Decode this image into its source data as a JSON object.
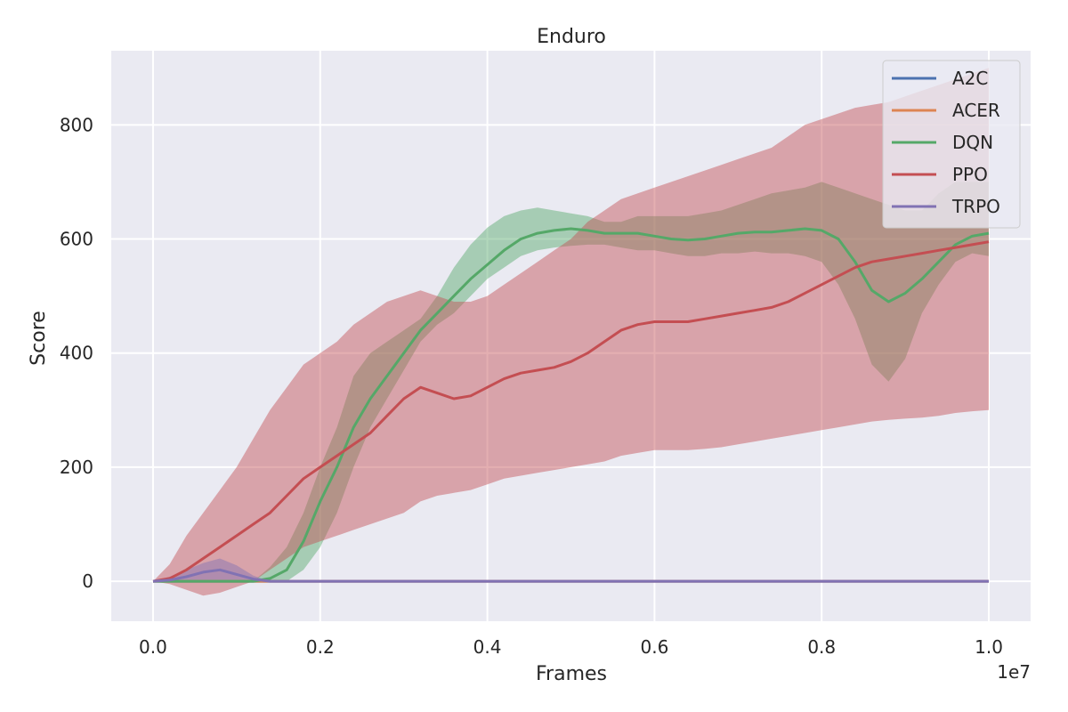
{
  "chart_data": {
    "type": "line",
    "title": "Enduro",
    "xlabel": "Frames",
    "ylabel": "Score",
    "x_offset_label": "1e7",
    "xlim": [
      -0.05,
      1.05
    ],
    "ylim": [
      -70,
      930
    ],
    "x_ticks": [
      0.0,
      0.2,
      0.4,
      0.6,
      0.8,
      1.0
    ],
    "x_tick_labels": [
      "0.0",
      "0.2",
      "0.4",
      "0.6",
      "0.8",
      "1.0"
    ],
    "y_ticks": [
      0,
      200,
      400,
      600,
      800
    ],
    "y_tick_labels": [
      "0",
      "200",
      "400",
      "600",
      "800"
    ],
    "grid": true,
    "legend_position": "top-right",
    "x": [
      0.0,
      0.02,
      0.04,
      0.06,
      0.08,
      0.1,
      0.12,
      0.14,
      0.16,
      0.18,
      0.2,
      0.22,
      0.24,
      0.26,
      0.28,
      0.3,
      0.32,
      0.34,
      0.36,
      0.38,
      0.4,
      0.42,
      0.44,
      0.46,
      0.48,
      0.5,
      0.52,
      0.54,
      0.56,
      0.58,
      0.6,
      0.62,
      0.64,
      0.66,
      0.68,
      0.7,
      0.72,
      0.74,
      0.76,
      0.78,
      0.8,
      0.82,
      0.84,
      0.86,
      0.88,
      0.9,
      0.92,
      0.94,
      0.96,
      0.98,
      1.0
    ],
    "series": [
      {
        "name": "A2C",
        "color": "#4c72b0",
        "values": [
          0,
          0,
          0,
          0,
          0,
          0,
          0,
          0,
          0,
          0,
          0,
          0,
          0,
          0,
          0,
          0,
          0,
          0,
          0,
          0,
          0,
          0,
          0,
          0,
          0,
          0,
          0,
          0,
          0,
          0,
          0,
          0,
          0,
          0,
          0,
          0,
          0,
          0,
          0,
          0,
          0,
          0,
          0,
          0,
          0,
          0,
          0,
          0,
          0,
          0,
          0
        ]
      },
      {
        "name": "ACER",
        "color": "#dd8452",
        "values": [
          0,
          0,
          0,
          0,
          0,
          0,
          0,
          0,
          0,
          0,
          0,
          0,
          0,
          0,
          0,
          0,
          0,
          0,
          0,
          0,
          0,
          0,
          0,
          0,
          0,
          0,
          0,
          0,
          0,
          0,
          0,
          0,
          0,
          0,
          0,
          0,
          0,
          0,
          0,
          0,
          0,
          0,
          0,
          0,
          0,
          0,
          0,
          0,
          0,
          0,
          0
        ]
      },
      {
        "name": "DQN",
        "color": "#55a868",
        "values": [
          0,
          0,
          0,
          0,
          0,
          0,
          0,
          5,
          20,
          70,
          140,
          200,
          270,
          320,
          360,
          400,
          440,
          470,
          500,
          530,
          555,
          580,
          600,
          610,
          615,
          618,
          615,
          610,
          610,
          610,
          605,
          600,
          598,
          600,
          605,
          610,
          612,
          612,
          615,
          618,
          615,
          600,
          560,
          510,
          490,
          505,
          530,
          560,
          590,
          605,
          610
        ],
        "upper": [
          0,
          0,
          0,
          0,
          0,
          0,
          0,
          25,
          60,
          120,
          200,
          270,
          360,
          400,
          420,
          440,
          460,
          500,
          550,
          590,
          620,
          640,
          650,
          655,
          650,
          645,
          640,
          630,
          630,
          640,
          640,
          640,
          640,
          645,
          650,
          660,
          670,
          680,
          685,
          690,
          700,
          690,
          680,
          670,
          660,
          650,
          650,
          680,
          700,
          700,
          700
        ],
        "lower": [
          0,
          0,
          0,
          0,
          0,
          0,
          0,
          0,
          0,
          20,
          60,
          120,
          200,
          270,
          320,
          370,
          420,
          450,
          470,
          500,
          530,
          550,
          570,
          580,
          585,
          588,
          590,
          590,
          585,
          580,
          580,
          575,
          570,
          570,
          575,
          575,
          578,
          575,
          575,
          570,
          560,
          520,
          460,
          380,
          350,
          390,
          470,
          520,
          560,
          575,
          570
        ]
      },
      {
        "name": "PPO",
        "color": "#c44e52",
        "values": [
          0,
          5,
          20,
          40,
          60,
          80,
          100,
          120,
          150,
          180,
          200,
          220,
          240,
          260,
          290,
          320,
          340,
          330,
          320,
          325,
          340,
          355,
          365,
          370,
          375,
          385,
          400,
          420,
          440,
          450,
          455,
          455,
          455,
          460,
          465,
          470,
          475,
          480,
          490,
          505,
          520,
          535,
          550,
          560,
          565,
          570,
          575,
          580,
          585,
          590,
          595
        ],
        "upper": [
          0,
          30,
          80,
          120,
          160,
          200,
          250,
          300,
          340,
          380,
          400,
          420,
          450,
          470,
          490,
          500,
          510,
          500,
          490,
          490,
          500,
          520,
          540,
          560,
          580,
          600,
          630,
          650,
          670,
          680,
          690,
          700,
          710,
          720,
          730,
          740,
          750,
          760,
          780,
          800,
          810,
          820,
          830,
          835,
          840,
          850,
          860,
          870,
          880,
          890,
          900
        ],
        "lower": [
          0,
          -5,
          -15,
          -25,
          -20,
          -10,
          0,
          20,
          40,
          60,
          70,
          80,
          90,
          100,
          110,
          120,
          140,
          150,
          155,
          160,
          170,
          180,
          185,
          190,
          195,
          200,
          205,
          210,
          220,
          225,
          230,
          230,
          230,
          232,
          235,
          240,
          245,
          250,
          255,
          260,
          265,
          270,
          275,
          280,
          283,
          285,
          287,
          290,
          295,
          298,
          300
        ]
      },
      {
        "name": "TRPO",
        "color": "#8172b3",
        "values": [
          0,
          2,
          8,
          16,
          20,
          12,
          4,
          0,
          0,
          0,
          0,
          0,
          0,
          0,
          0,
          0,
          0,
          0,
          0,
          0,
          0,
          0,
          0,
          0,
          0,
          0,
          0,
          0,
          0,
          0,
          0,
          0,
          0,
          0,
          0,
          0,
          0,
          0,
          0,
          0,
          0,
          0,
          0,
          0,
          0,
          0,
          0,
          0,
          0,
          0,
          0
        ],
        "upper": [
          0,
          8,
          20,
          32,
          40,
          28,
          10,
          0,
          0,
          0,
          0,
          0,
          0,
          0,
          0,
          0,
          0,
          0,
          0,
          0,
          0,
          0,
          0,
          0,
          0,
          0,
          0,
          0,
          0,
          0,
          0,
          0,
          0,
          0,
          0,
          0,
          0,
          0,
          0,
          0,
          0,
          0,
          0,
          0,
          0,
          0,
          0,
          0,
          0,
          0,
          0
        ],
        "lower": [
          0,
          0,
          0,
          2,
          2,
          0,
          0,
          0,
          0,
          0,
          0,
          0,
          0,
          0,
          0,
          0,
          0,
          0,
          0,
          0,
          0,
          0,
          0,
          0,
          0,
          0,
          0,
          0,
          0,
          0,
          0,
          0,
          0,
          0,
          0,
          0,
          0,
          0,
          0,
          0,
          0,
          0,
          0,
          0,
          0,
          0,
          0,
          0,
          0,
          0,
          0
        ]
      }
    ]
  }
}
